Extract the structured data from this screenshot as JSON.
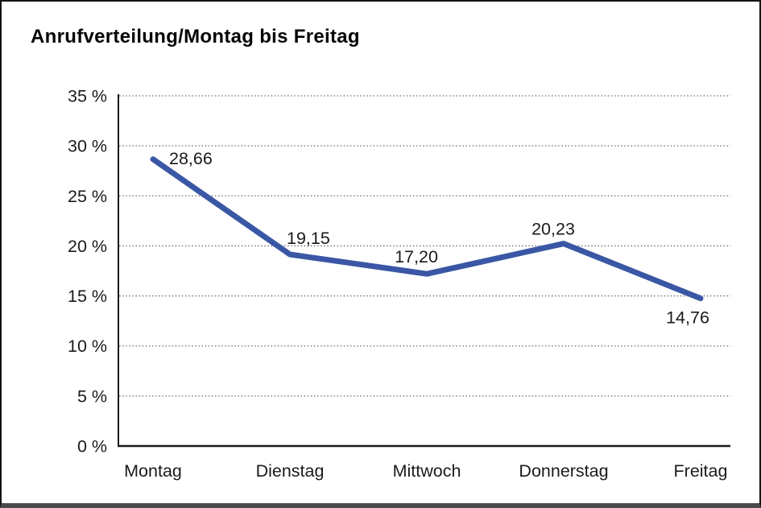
{
  "window": {
    "background_color": "#ffffff",
    "border_color": "#141414",
    "bottom_border_color": "#4a4a4a"
  },
  "chart_data": {
    "type": "line",
    "title": "Anrufverteilung/Montag bis Freitag",
    "categories": [
      "Montag",
      "Dienstag",
      "Mittwoch",
      "Donnerstag",
      "Freitag"
    ],
    "series": [
      {
        "name": "Anrufverteilung",
        "values": [
          28.66,
          19.15,
          17.2,
          20.23,
          14.76
        ],
        "data_labels": [
          "28,66",
          "19,15",
          "17,20",
          "20,23",
          "14,76"
        ],
        "color": "#3a57a5"
      }
    ],
    "xlabel": "",
    "ylabel": "",
    "ylim": [
      0,
      35
    ],
    "y_ticks": [
      0,
      5,
      10,
      15,
      20,
      25,
      30,
      35
    ],
    "y_tick_labels": [
      "0 %",
      "5 %",
      "10 %",
      "15 %",
      "20 %",
      "25 %",
      "30 %",
      "35 %"
    ],
    "grid": "horizontal-dotted",
    "grid_color": "#6b6b6b",
    "axis_color": "#1a1a1a",
    "legend": "none"
  }
}
